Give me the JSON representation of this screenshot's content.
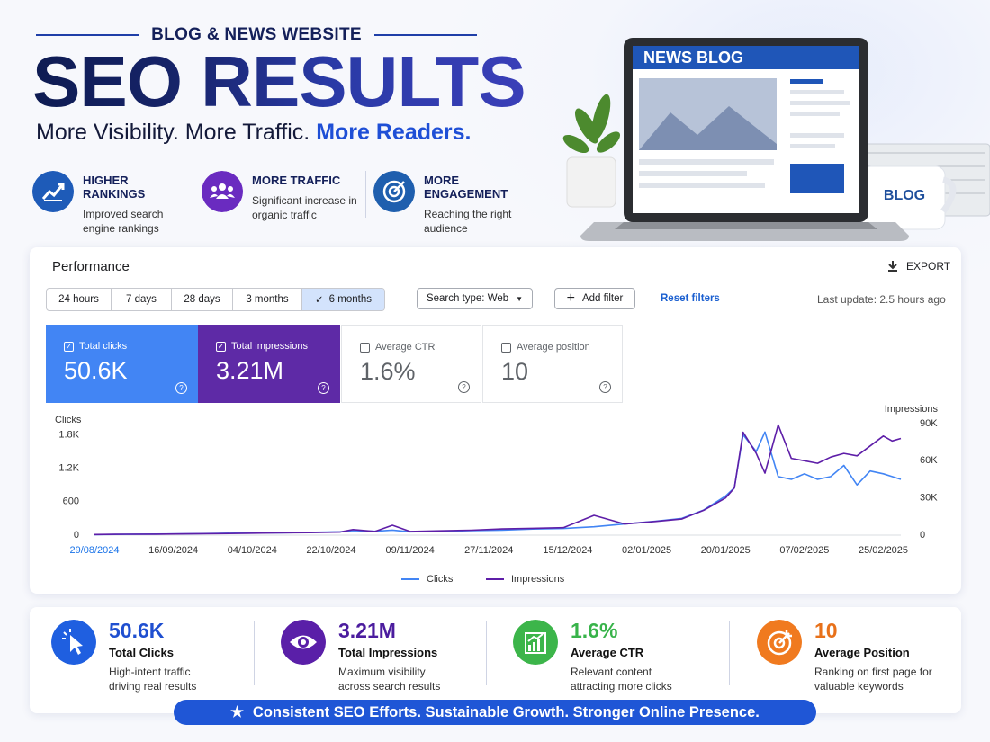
{
  "header": {
    "kicker": "BLOG & NEWS WEBSITE",
    "title": "SEO RESULTS",
    "subtitle_main": "More Visibility. More Traffic.",
    "subtitle_highlight": "More Readers."
  },
  "features": [
    {
      "title": "HIGHER RANKINGS",
      "text": "Improved search engine rankings"
    },
    {
      "title": "MORE TRAFFIC",
      "text": "Significant increase in organic traffic"
    },
    {
      "title": "MORE ENGAGEMENT",
      "text": "Reaching the right audience"
    }
  ],
  "illustration": {
    "screen_title": "NEWS BLOG",
    "mug": "BLOG"
  },
  "performance": {
    "title": "Performance",
    "export": "EXPORT",
    "ranges": [
      "24 hours",
      "7 days",
      "28 days",
      "3 months",
      "6 months"
    ],
    "search_type": "Search type: Web",
    "add_filter": "Add filter",
    "reset": "Reset filters",
    "last_update": "Last update: 2.5 hours ago",
    "metrics": [
      {
        "label": "Total clicks",
        "value": "50.6K"
      },
      {
        "label": "Total impressions",
        "value": "3.21M"
      },
      {
        "label": "Average CTR",
        "value": "1.6%"
      },
      {
        "label": "Average position",
        "value": "10"
      }
    ]
  },
  "chart_data": {
    "type": "line",
    "y_label": "Clicks",
    "y2_label": "Impressions",
    "x": [
      "2024-08-29",
      "2024-09-05",
      "2024-09-12",
      "2024-09-19",
      "2024-09-26",
      "2024-10-03",
      "2024-10-10",
      "2024-10-17",
      "2024-10-24",
      "2024-10-27",
      "2024-11-01",
      "2024-11-05",
      "2024-11-09",
      "2024-11-16",
      "2024-11-23",
      "2024-11-30",
      "2024-12-07",
      "2024-12-14",
      "2024-12-21",
      "2024-12-28",
      "2025-01-04",
      "2025-01-10",
      "2025-01-15",
      "2025-01-20",
      "2025-01-22",
      "2025-01-24",
      "2025-01-27",
      "2025-01-29",
      "2025-02-01",
      "2025-02-04",
      "2025-02-07",
      "2025-02-10",
      "2025-02-13",
      "2025-02-16",
      "2025-02-19",
      "2025-02-22",
      "2025-02-25",
      "2025-02-27",
      "2025-03-01"
    ],
    "xlim": [
      "2024-08-29",
      "2025-03-01"
    ],
    "xticks": [
      {
        "value": "2024-08-29",
        "label": "29/08/2024"
      },
      {
        "value": "2024-09-16",
        "label": "16/09/2024"
      },
      {
        "value": "2024-10-04",
        "label": "04/10/2024"
      },
      {
        "value": "2024-10-22",
        "label": "22/10/2024"
      },
      {
        "value": "2024-11-09",
        "label": "09/11/2024"
      },
      {
        "value": "2024-11-27",
        "label": "27/11/2024"
      },
      {
        "value": "2024-12-15",
        "label": "15/12/2024"
      },
      {
        "value": "2025-01-02",
        "label": "02/01/2025"
      },
      {
        "value": "2025-01-20",
        "label": "20/01/2025"
      },
      {
        "value": "2025-02-07",
        "label": "07/02/2025"
      },
      {
        "value": "2025-02-25",
        "label": "25/02/2025"
      }
    ],
    "ylim": [
      0,
      2000
    ],
    "yticks": [
      0,
      600,
      {
        "value": 1200,
        "label": "1.2K"
      },
      {
        "value": 1800,
        "label": "1.8K"
      }
    ],
    "y2lim": [
      0,
      90000
    ],
    "y2ticks": [
      0,
      {
        "value": 30000,
        "label": "30K"
      },
      {
        "value": 60000,
        "label": "60K"
      },
      {
        "value": 90000,
        "label": "90K"
      }
    ],
    "grid": false,
    "legend": "bottom",
    "series": [
      {
        "name": "Clicks",
        "color": "#4285f4",
        "values": [
          10,
          15,
          20,
          25,
          30,
          40,
          40,
          50,
          60,
          80,
          70,
          90,
          60,
          70,
          80,
          90,
          110,
          120,
          150,
          200,
          250,
          300,
          450,
          700,
          850,
          1800,
          1500,
          1850,
          1050,
          1000,
          1100,
          1000,
          1050,
          1250,
          900,
          1150,
          1100,
          1050,
          1000
        ]
      },
      {
        "name": "Impressions",
        "color": "#5e1ea8",
        "axis": "y2",
        "values": [
          500,
          700,
          800,
          1000,
          1200,
          1500,
          1800,
          2000,
          2500,
          4500,
          3000,
          8000,
          3000,
          3500,
          4000,
          5000,
          5500,
          6000,
          16000,
          9000,
          11000,
          13000,
          20000,
          30000,
          38000,
          83000,
          66000,
          50000,
          89000,
          62000,
          60000,
          58000,
          63000,
          66000,
          64000,
          72000,
          80000,
          76000,
          78000
        ]
      }
    ]
  },
  "stats": [
    {
      "value": "50.6K",
      "title": "Total Clicks",
      "text": "High-intent traffic driving real results"
    },
    {
      "value": "3.21M",
      "title": "Total Impressions",
      "text": "Maximum visibility across search results"
    },
    {
      "value": "1.6%",
      "title": "Average CTR",
      "text": "Relevant content attracting more clicks"
    },
    {
      "value": "10",
      "title": "Average Position",
      "text": "Ranking on first page for valuable keywords"
    }
  ],
  "footer": "Consistent SEO Efforts. Sustainable Growth. Stronger Online Presence."
}
